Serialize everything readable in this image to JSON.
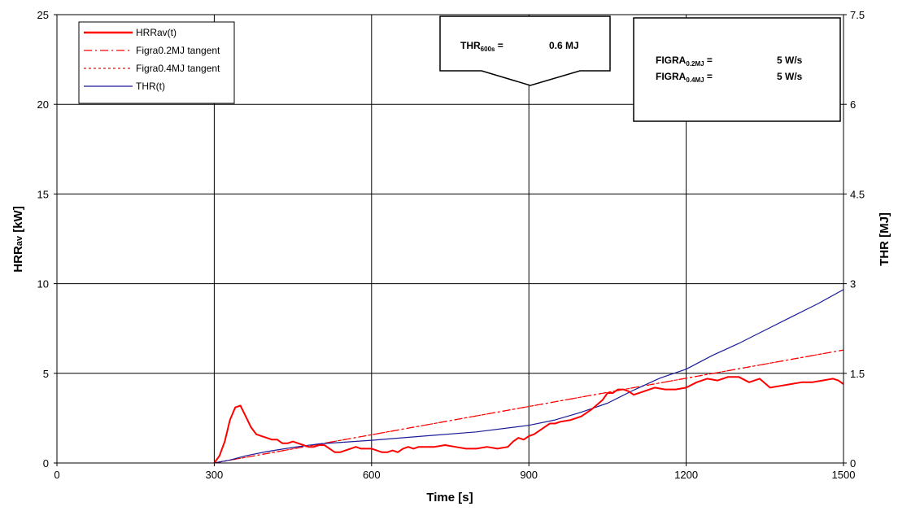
{
  "chart_data": {
    "type": "line",
    "xlabel": "Time [s]",
    "ylabel_left_main": "HRR",
    "ylabel_left_sub": "av",
    "ylabel_left_unit": " [kW]",
    "ylabel_right": "THR [MJ]",
    "xlim": [
      0,
      1500
    ],
    "ylim_left": [
      0,
      25
    ],
    "ylim_right": [
      0,
      7.5
    ],
    "x_ticks": [
      "0",
      "300",
      "600",
      "900",
      "1200",
      "1500"
    ],
    "y_left_ticks": [
      "0",
      "5",
      "10",
      "15",
      "20",
      "25"
    ],
    "y_right_ticks": [
      "0",
      "1.5",
      "3",
      "4.5",
      "6",
      "7.5"
    ],
    "grid": true,
    "legend_position": "top-left",
    "legend": [
      {
        "label": "HRRav(t)"
      },
      {
        "label": "Figra0.2MJ tangent"
      },
      {
        "label": "Figra0.4MJ tangent"
      },
      {
        "label": "THR(t)"
      }
    ],
    "series": [
      {
        "name": "HRRav(t)",
        "axis": "left",
        "color": "#ff0000",
        "x": [
          300,
          310,
          320,
          330,
          340,
          350,
          360,
          370,
          380,
          390,
          400,
          410,
          420,
          430,
          440,
          450,
          460,
          470,
          480,
          490,
          500,
          510,
          520,
          530,
          540,
          550,
          560,
          570,
          580,
          590,
          600,
          610,
          620,
          630,
          640,
          650,
          660,
          670,
          680,
          690,
          700,
          720,
          740,
          760,
          780,
          800,
          820,
          840,
          860,
          870,
          880,
          890,
          900,
          910,
          920,
          930,
          940,
          950,
          960,
          980,
          1000,
          1020,
          1040,
          1050,
          1060,
          1070,
          1080,
          1090,
          1100,
          1120,
          1140,
          1160,
          1180,
          1200,
          1220,
          1240,
          1260,
          1280,
          1300,
          1320,
          1340,
          1360,
          1380,
          1400,
          1420,
          1440,
          1460,
          1480,
          1490,
          1500
        ],
        "y": [
          0,
          0.4,
          1.2,
          2.4,
          3.1,
          3.2,
          2.6,
          2.0,
          1.6,
          1.5,
          1.4,
          1.3,
          1.3,
          1.1,
          1.1,
          1.2,
          1.1,
          1.0,
          0.9,
          0.9,
          1.0,
          1.0,
          0.8,
          0.6,
          0.6,
          0.7,
          0.8,
          0.9,
          0.8,
          0.8,
          0.8,
          0.7,
          0.6,
          0.6,
          0.7,
          0.6,
          0.8,
          0.9,
          0.8,
          0.9,
          0.9,
          0.9,
          1.0,
          0.9,
          0.8,
          0.8,
          0.9,
          0.8,
          0.9,
          1.2,
          1.4,
          1.3,
          1.5,
          1.6,
          1.8,
          2.0,
          2.2,
          2.2,
          2.3,
          2.4,
          2.6,
          3.0,
          3.5,
          3.9,
          3.9,
          4.1,
          4.1,
          4.0,
          3.8,
          4.0,
          4.2,
          4.1,
          4.1,
          4.2,
          4.5,
          4.7,
          4.6,
          4.8,
          4.8,
          4.5,
          4.7,
          4.2,
          4.3,
          4.4,
          4.5,
          4.5,
          4.6,
          4.7,
          4.6,
          4.4
        ]
      },
      {
        "name": "Figra0.2MJ tangent",
        "axis": "left",
        "color": "#ff0000",
        "dash": "dashdot",
        "x": [
          300,
          1500
        ],
        "y": [
          0,
          6.3
        ]
      },
      {
        "name": "Figra0.4MJ tangent",
        "axis": "left",
        "color": "#ff0000",
        "dash": "dotted",
        "x": [
          300,
          1500
        ],
        "y": [
          0,
          6.3
        ]
      },
      {
        "name": "THR(t)",
        "axis": "right",
        "color": "#1c1c99",
        "x": [
          300,
          330,
          360,
          400,
          450,
          500,
          600,
          700,
          800,
          900,
          950,
          1000,
          1050,
          1100,
          1150,
          1200,
          1250,
          1300,
          1350,
          1400,
          1450,
          1500
        ],
        "y": [
          0,
          0.05,
          0.12,
          0.19,
          0.26,
          0.32,
          0.38,
          0.45,
          0.52,
          0.63,
          0.72,
          0.85,
          1.0,
          1.22,
          1.42,
          1.57,
          1.8,
          2.0,
          2.22,
          2.44,
          2.66,
          2.9
        ]
      }
    ],
    "annotations": {
      "thr": {
        "label_main": "THR",
        "label_sub": "600s",
        "label_suffix": " =",
        "value": "0.6  MJ"
      },
      "figra": [
        {
          "label_main": "FIGRA",
          "label_sub": "0.2MJ",
          "label_suffix": " =",
          "value": "5  W/s"
        },
        {
          "label_main": "FIGRA",
          "label_sub": "0.4MJ",
          "label_suffix": " =",
          "value": "5  W/s"
        }
      ]
    }
  }
}
